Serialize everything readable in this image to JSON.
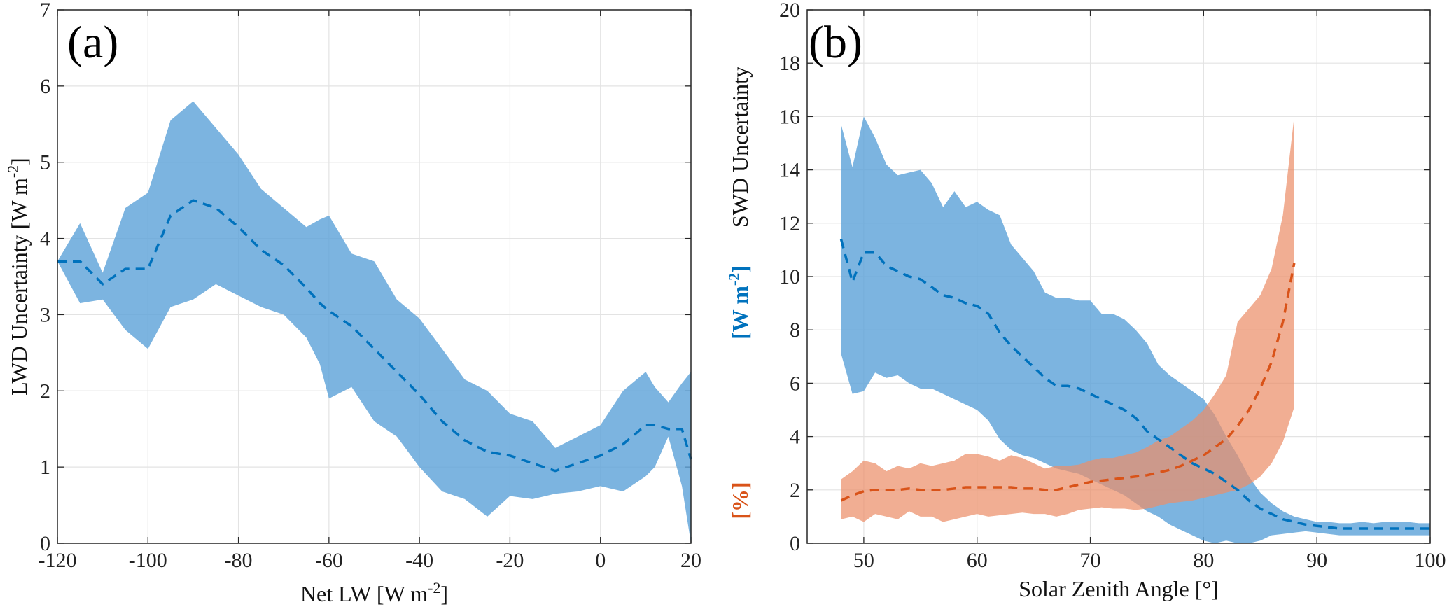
{
  "chart_data": [
    {
      "type": "area",
      "panel_label": "(a)",
      "xlabel": "Net LW [W m",
      "xlabel_sup": "-2",
      "xlabel_end": "]",
      "ylabel": "LWD Uncertainty [W m",
      "ylabel_sup": "-2",
      "ylabel_end": "]",
      "xlim": [
        -120,
        20
      ],
      "ylim": [
        0,
        7
      ],
      "xticks": [
        -120,
        -100,
        -80,
        -60,
        -40,
        -20,
        0,
        20
      ],
      "xtick_labels": [
        "-120",
        "-100",
        "-80",
        "-60",
        "-40",
        "-20",
        "0",
        "20"
      ],
      "yticks": [
        0,
        1,
        2,
        3,
        4,
        5,
        6,
        7
      ],
      "ytick_labels": [
        "0",
        "1",
        "2",
        "3",
        "4",
        "5",
        "6",
        "7"
      ],
      "grid": true,
      "series": [
        {
          "color": "#0072BD",
          "band_color": "#5fa3d9",
          "x": [
            -120,
            -115,
            -110,
            -105,
            -100,
            -95,
            -90,
            -85,
            -80,
            -75,
            -70,
            -65,
            -62,
            -60,
            -55,
            -50,
            -45,
            -40,
            -35,
            -30,
            -25,
            -20,
            -15,
            -10,
            -5,
            0,
            5,
            10,
            12,
            15,
            18,
            20
          ],
          "mean": [
            3.7,
            3.7,
            3.4,
            3.6,
            3.6,
            4.3,
            4.5,
            4.4,
            4.15,
            3.85,
            3.65,
            3.35,
            3.15,
            3.05,
            2.85,
            2.55,
            2.25,
            1.95,
            1.6,
            1.35,
            1.2,
            1.15,
            1.05,
            0.95,
            1.05,
            1.15,
            1.3,
            1.55,
            1.55,
            1.5,
            1.5,
            1.1
          ],
          "upper": [
            3.7,
            4.2,
            3.55,
            4.4,
            4.6,
            5.55,
            5.8,
            5.45,
            5.1,
            4.65,
            4.4,
            4.15,
            4.25,
            4.3,
            3.8,
            3.7,
            3.2,
            2.95,
            2.55,
            2.15,
            2.0,
            1.7,
            1.6,
            1.25,
            1.4,
            1.55,
            2.0,
            2.25,
            2.05,
            1.85,
            2.1,
            2.25
          ],
          "lower": [
            3.7,
            3.15,
            3.2,
            2.8,
            2.55,
            3.1,
            3.2,
            3.4,
            3.25,
            3.1,
            3.0,
            2.7,
            2.35,
            1.9,
            2.05,
            1.6,
            1.4,
            1.0,
            0.68,
            0.58,
            0.35,
            0.62,
            0.58,
            0.65,
            0.68,
            0.75,
            0.68,
            0.88,
            1.0,
            1.4,
            0.75,
            0.0
          ]
        }
      ]
    },
    {
      "type": "area",
      "panel_label": "(b)",
      "xlabel": "Solar Zenith Angle [°]",
      "ylabel_title": "SWD Uncertainty",
      "ylabel_wm": "[W m",
      "ylabel_wm_sup": "-2",
      "ylabel_wm_end": "]",
      "ylabel_pct": "[%]",
      "xlim": [
        45,
        100
      ],
      "ylim": [
        0,
        20
      ],
      "xticks": [
        50,
        60,
        70,
        80,
        90,
        100
      ],
      "xtick_labels": [
        "50",
        "60",
        "70",
        "80",
        "90",
        "100"
      ],
      "yticks": [
        0,
        2,
        4,
        6,
        8,
        10,
        12,
        14,
        16,
        18,
        20
      ],
      "ytick_labels": [
        "0",
        "2",
        "4",
        "6",
        "8",
        "10",
        "12",
        "14",
        "16",
        "18",
        "20"
      ],
      "grid": true,
      "series": [
        {
          "unit": "W m-2",
          "color": "#0072BD",
          "band_color": "#5fa3d9",
          "x": [
            48,
            49,
            50,
            51,
            52,
            53,
            54,
            55,
            56,
            57,
            58,
            59,
            60,
            61,
            62,
            63,
            64,
            65,
            66,
            67,
            68,
            69,
            70,
            71,
            72,
            73,
            74,
            75,
            76,
            77,
            78,
            79,
            80,
            81,
            82,
            83,
            84,
            85,
            86,
            87,
            88,
            89,
            90,
            91,
            92,
            93,
            94,
            95,
            96,
            97,
            98,
            99,
            100
          ],
          "mean": [
            11.4,
            9.8,
            10.9,
            10.9,
            10.4,
            10.2,
            10.0,
            9.9,
            9.6,
            9.3,
            9.2,
            9.0,
            8.9,
            8.6,
            7.9,
            7.4,
            7.0,
            6.6,
            6.2,
            5.9,
            5.9,
            5.8,
            5.6,
            5.4,
            5.2,
            5.0,
            4.7,
            4.2,
            3.9,
            3.6,
            3.3,
            3.0,
            2.8,
            2.6,
            2.3,
            2.0,
            1.6,
            1.3,
            1.1,
            0.9,
            0.8,
            0.7,
            0.65,
            0.6,
            0.55,
            0.55,
            0.55,
            0.55,
            0.55,
            0.55,
            0.55,
            0.55,
            0.55
          ],
          "upper": [
            15.7,
            14.1,
            16.0,
            15.2,
            14.2,
            13.8,
            13.9,
            14.0,
            13.5,
            12.6,
            13.2,
            12.6,
            12.8,
            12.5,
            12.3,
            11.2,
            10.7,
            10.2,
            9.4,
            9.2,
            9.2,
            9.1,
            9.1,
            8.6,
            8.6,
            8.4,
            8.0,
            7.5,
            6.7,
            6.3,
            6.0,
            5.7,
            5.4,
            4.8,
            4.0,
            3.3,
            2.5,
            1.9,
            1.5,
            1.2,
            1.0,
            0.9,
            0.8,
            0.8,
            0.75,
            0.75,
            0.8,
            0.75,
            0.8,
            0.8,
            0.8,
            0.75,
            0.75
          ],
          "lower": [
            7.1,
            5.6,
            5.7,
            6.4,
            6.2,
            6.3,
            6.0,
            5.8,
            5.8,
            5.6,
            5.4,
            5.2,
            5.0,
            4.6,
            3.9,
            3.5,
            3.3,
            3.2,
            3.0,
            2.8,
            2.7,
            2.6,
            2.4,
            2.2,
            2.0,
            1.8,
            1.5,
            1.2,
            1.0,
            0.7,
            0.5,
            0.3,
            0.1,
            0.0,
            0.1,
            0.0,
            0.0,
            0.1,
            0.3,
            0.35,
            0.4,
            0.45,
            0.4,
            0.35,
            0.3,
            0.3,
            0.3,
            0.3,
            0.3,
            0.3,
            0.3,
            0.3,
            0.3
          ]
        },
        {
          "unit": "%",
          "color": "#D95319",
          "band_color": "#eb8f6a",
          "x": [
            48,
            49,
            50,
            51,
            52,
            53,
            54,
            55,
            56,
            57,
            58,
            59,
            60,
            61,
            62,
            63,
            64,
            65,
            66,
            67,
            68,
            69,
            70,
            71,
            72,
            73,
            74,
            75,
            76,
            77,
            78,
            79,
            80,
            81,
            82,
            83,
            84,
            85,
            86,
            87,
            88
          ],
          "mean": [
            1.6,
            1.8,
            1.95,
            2.0,
            2.0,
            2.0,
            2.05,
            2.0,
            2.0,
            2.0,
            2.05,
            2.1,
            2.1,
            2.1,
            2.1,
            2.1,
            2.05,
            2.05,
            2.0,
            2.0,
            2.1,
            2.2,
            2.3,
            2.35,
            2.4,
            2.45,
            2.5,
            2.55,
            2.65,
            2.75,
            2.9,
            3.1,
            3.3,
            3.6,
            3.9,
            4.4,
            5.0,
            5.8,
            6.8,
            8.3,
            10.5
          ],
          "upper": [
            2.4,
            2.7,
            3.1,
            3.0,
            2.7,
            2.9,
            2.8,
            3.0,
            2.9,
            3.0,
            3.1,
            3.35,
            3.35,
            3.25,
            3.1,
            3.3,
            3.2,
            3.0,
            2.8,
            2.9,
            2.9,
            2.95,
            3.1,
            3.2,
            3.2,
            3.3,
            3.4,
            3.6,
            3.85,
            4.0,
            4.3,
            4.6,
            5.0,
            5.6,
            6.3,
            8.3,
            8.8,
            9.3,
            10.3,
            12.3,
            16.0
          ],
          "lower": [
            0.9,
            1.0,
            0.8,
            1.1,
            1.0,
            0.9,
            1.2,
            1.0,
            1.0,
            0.8,
            0.9,
            1.0,
            1.1,
            1.0,
            1.05,
            1.1,
            1.15,
            1.1,
            1.1,
            1.0,
            1.1,
            1.25,
            1.3,
            1.35,
            1.3,
            1.3,
            1.25,
            1.3,
            1.4,
            1.5,
            1.55,
            1.6,
            1.7,
            1.8,
            1.9,
            2.0,
            2.2,
            2.5,
            3.0,
            3.8,
            5.1
          ]
        }
      ]
    }
  ]
}
